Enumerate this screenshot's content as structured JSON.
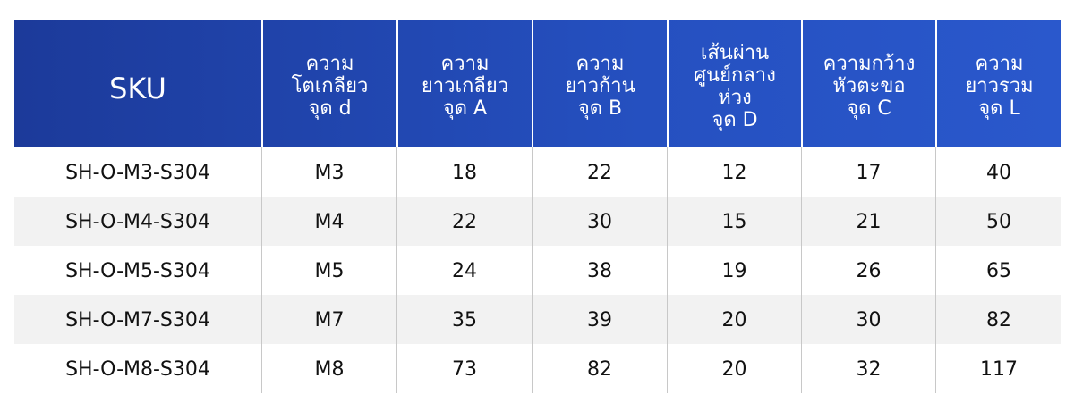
{
  "table": {
    "header": [
      [
        "SKU"
      ],
      [
        "ความ",
        "โตเกลียว",
        "จุด d"
      ],
      [
        "ความ",
        "ยาวเกลียว",
        "จุด A"
      ],
      [
        "ความ",
        "ยาวก้าน",
        "จุด B"
      ],
      [
        "เส้นผ่าน",
        "ศูนย์กลาง",
        "ห่วง",
        "จุด D"
      ],
      [
        "ความกว้าง",
        "หัวตะขอ",
        "จุด C"
      ],
      [
        "ความ",
        "ยาวรวม",
        "จุด L"
      ]
    ],
    "rows": [
      [
        "SH-O-M3-S304",
        "M3",
        18,
        22,
        12,
        17,
        40
      ],
      [
        "SH-O-M4-S304",
        "M4",
        22,
        30,
        15,
        21,
        50
      ],
      [
        "SH-O-M5-S304",
        "M5",
        24,
        38,
        19,
        26,
        65
      ],
      [
        "SH-O-M7-S304",
        "M7",
        35,
        39,
        20,
        30,
        82
      ],
      [
        "SH-O-M8-S304",
        "M8",
        73,
        82,
        20,
        32,
        117
      ]
    ]
  }
}
